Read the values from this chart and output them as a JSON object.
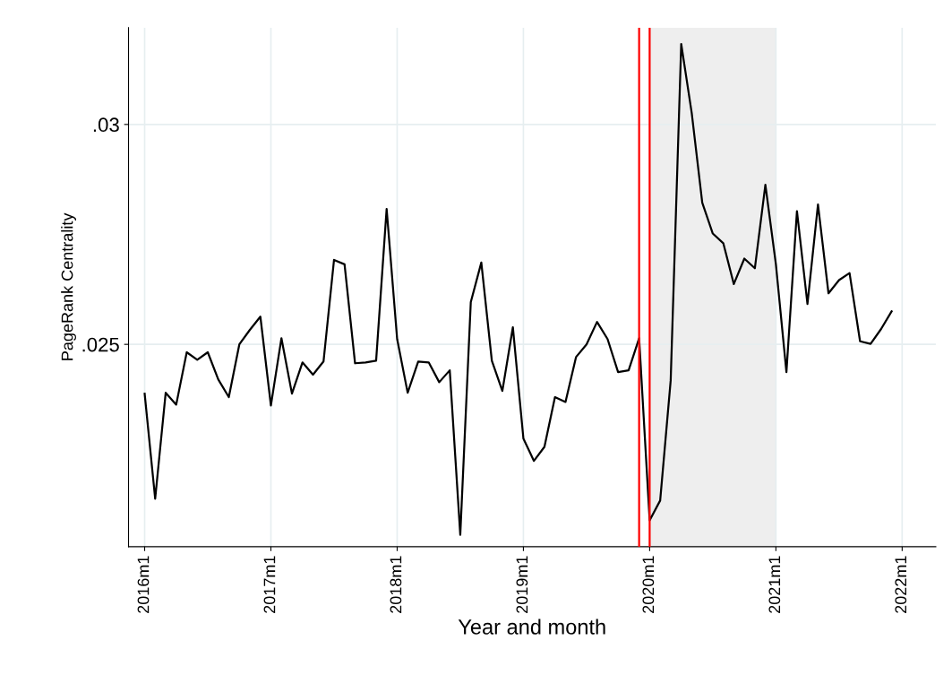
{
  "chart_data": {
    "type": "line",
    "xlabel": "Year and month",
    "ylabel": "PageRank Centrality",
    "x": [
      "2016-01",
      "2016-02",
      "2016-03",
      "2016-04",
      "2016-05",
      "2016-06",
      "2016-07",
      "2016-08",
      "2016-09",
      "2016-10",
      "2016-11",
      "2016-12",
      "2017-01",
      "2017-02",
      "2017-03",
      "2017-04",
      "2017-05",
      "2017-06",
      "2017-07",
      "2017-08",
      "2017-09",
      "2017-10",
      "2017-11",
      "2017-12",
      "2018-01",
      "2018-02",
      "2018-03",
      "2018-04",
      "2018-05",
      "2018-06",
      "2018-07",
      "2018-08",
      "2018-09",
      "2018-10",
      "2018-11",
      "2018-12",
      "2019-01",
      "2019-02",
      "2019-03",
      "2019-04",
      "2019-05",
      "2019-06",
      "2019-07",
      "2019-08",
      "2019-09",
      "2019-10",
      "2019-11",
      "2019-12",
      "2020-01",
      "2020-02",
      "2020-03",
      "2020-04",
      "2020-05",
      "2020-06",
      "2020-07",
      "2020-08",
      "2020-09",
      "2020-10",
      "2020-11",
      "2020-12",
      "2021-01",
      "2021-02",
      "2021-03",
      "2021-04",
      "2021-05",
      "2021-06",
      "2021-07",
      "2021-08",
      "2021-09",
      "2021-10",
      "2021-11",
      "2021-12"
    ],
    "series": [
      {
        "color": "#000000",
        "values": [
          0.02388,
          0.02149,
          0.0239,
          0.02363,
          0.02482,
          0.02465,
          0.02482,
          0.0242,
          0.0238,
          0.025,
          0.02533,
          0.02563,
          0.02361,
          0.02514,
          0.02388,
          0.02459,
          0.02431,
          0.02461,
          0.02692,
          0.02682,
          0.02457,
          0.02459,
          0.02463,
          0.02808,
          0.02512,
          0.0239,
          0.02461,
          0.02459,
          0.02414,
          0.02441,
          0.02067,
          0.02596,
          0.02686,
          0.02463,
          0.02394,
          0.02539,
          0.02286,
          0.02235,
          0.02267,
          0.0238,
          0.02369,
          0.02471,
          0.025,
          0.02551,
          0.02512,
          0.02437,
          0.02441,
          0.02514,
          0.021,
          0.02145,
          0.02418,
          0.03183,
          0.03026,
          0.02822,
          0.02752,
          0.0273,
          0.02637,
          0.02695,
          0.02673,
          0.02863,
          0.02682,
          0.02437,
          0.02803,
          0.02592,
          0.02818,
          0.02616,
          0.02646,
          0.02662,
          0.02507,
          0.02501,
          0.02535,
          0.02575
        ]
      }
    ],
    "xlim": [
      "2015-11-15",
      "2022-04-07"
    ],
    "xticks": [
      {
        "value": "2016-01",
        "label": "2016m1"
      },
      {
        "value": "2017-01",
        "label": "2017m1"
      },
      {
        "value": "2018-01",
        "label": "2018m1"
      },
      {
        "value": "2019-01",
        "label": "2019m1"
      },
      {
        "value": "2020-01",
        "label": "2020m1"
      },
      {
        "value": "2021-01",
        "label": "2021m1"
      },
      {
        "value": "2022-01",
        "label": "2022m1"
      }
    ],
    "ylim": [
      0.0204,
      0.0322
    ],
    "yticks": [
      {
        "value": 0.025,
        "label": ".025"
      },
      {
        "value": 0.03,
        "label": ".03"
      }
    ],
    "ref_lines": [
      {
        "axis": "x",
        "value": "2019-12",
        "color": "#ff0000"
      },
      {
        "axis": "x",
        "value": "2020-01",
        "color": "#ff0000"
      }
    ],
    "bands": [
      {
        "axis": "x",
        "from": "2020-01",
        "to": "2021-01",
        "color": "#eeeeee"
      }
    ],
    "grid": true,
    "legend": false
  }
}
